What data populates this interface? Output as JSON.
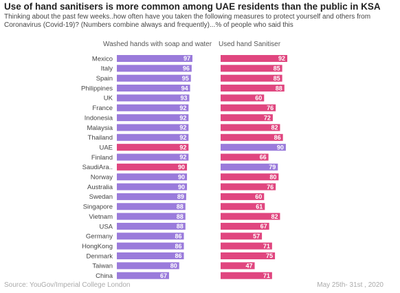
{
  "chart_data": {
    "type": "bar",
    "title": "Use of hand sanitisers is more common among UAE residents than the public in KSA",
    "subtitle": "Thinking about the past few weeks..how often have you taken the following measures to protect yourself and others from Coronavirus (Covid-19)? (Numbers combine always and frequently)...% of people who said this",
    "categories": [
      "Mexico",
      "Italy",
      "Spain",
      "Philippines",
      "UK",
      "France",
      "Indonesia",
      "Malaysia",
      "Thailand",
      "UAE",
      "Finland",
      "SaudiAra..",
      "Norway",
      "Australia",
      "Swedan",
      "Singapore",
      "Vietnam",
      "USA",
      "Germany",
      "HongKong",
      "Denmark",
      "Taiwan",
      "China"
    ],
    "series": [
      {
        "name": "Washed hands with soap and water",
        "values": [
          97,
          96,
          95,
          94,
          93,
          92,
          92,
          92,
          92,
          92,
          92,
          90,
          90,
          90,
          89,
          88,
          88,
          88,
          86,
          86,
          86,
          80,
          67
        ]
      },
      {
        "name": "Used hand Sanitiser",
        "values": [
          92,
          85,
          85,
          88,
          60,
          76,
          72,
          82,
          86,
          90,
          66,
          79,
          80,
          76,
          60,
          61,
          82,
          67,
          57,
          71,
          75,
          47,
          71
        ]
      }
    ],
    "highlight": {
      "UAE": "left",
      "SaudiAra..": "left"
    },
    "colors": {
      "soap": "#9a7bdb",
      "sanitiser": "#e0467f"
    },
    "source": "Source: YouGov/Imperial College London",
    "date": "May 25th- 31st , 2020"
  }
}
